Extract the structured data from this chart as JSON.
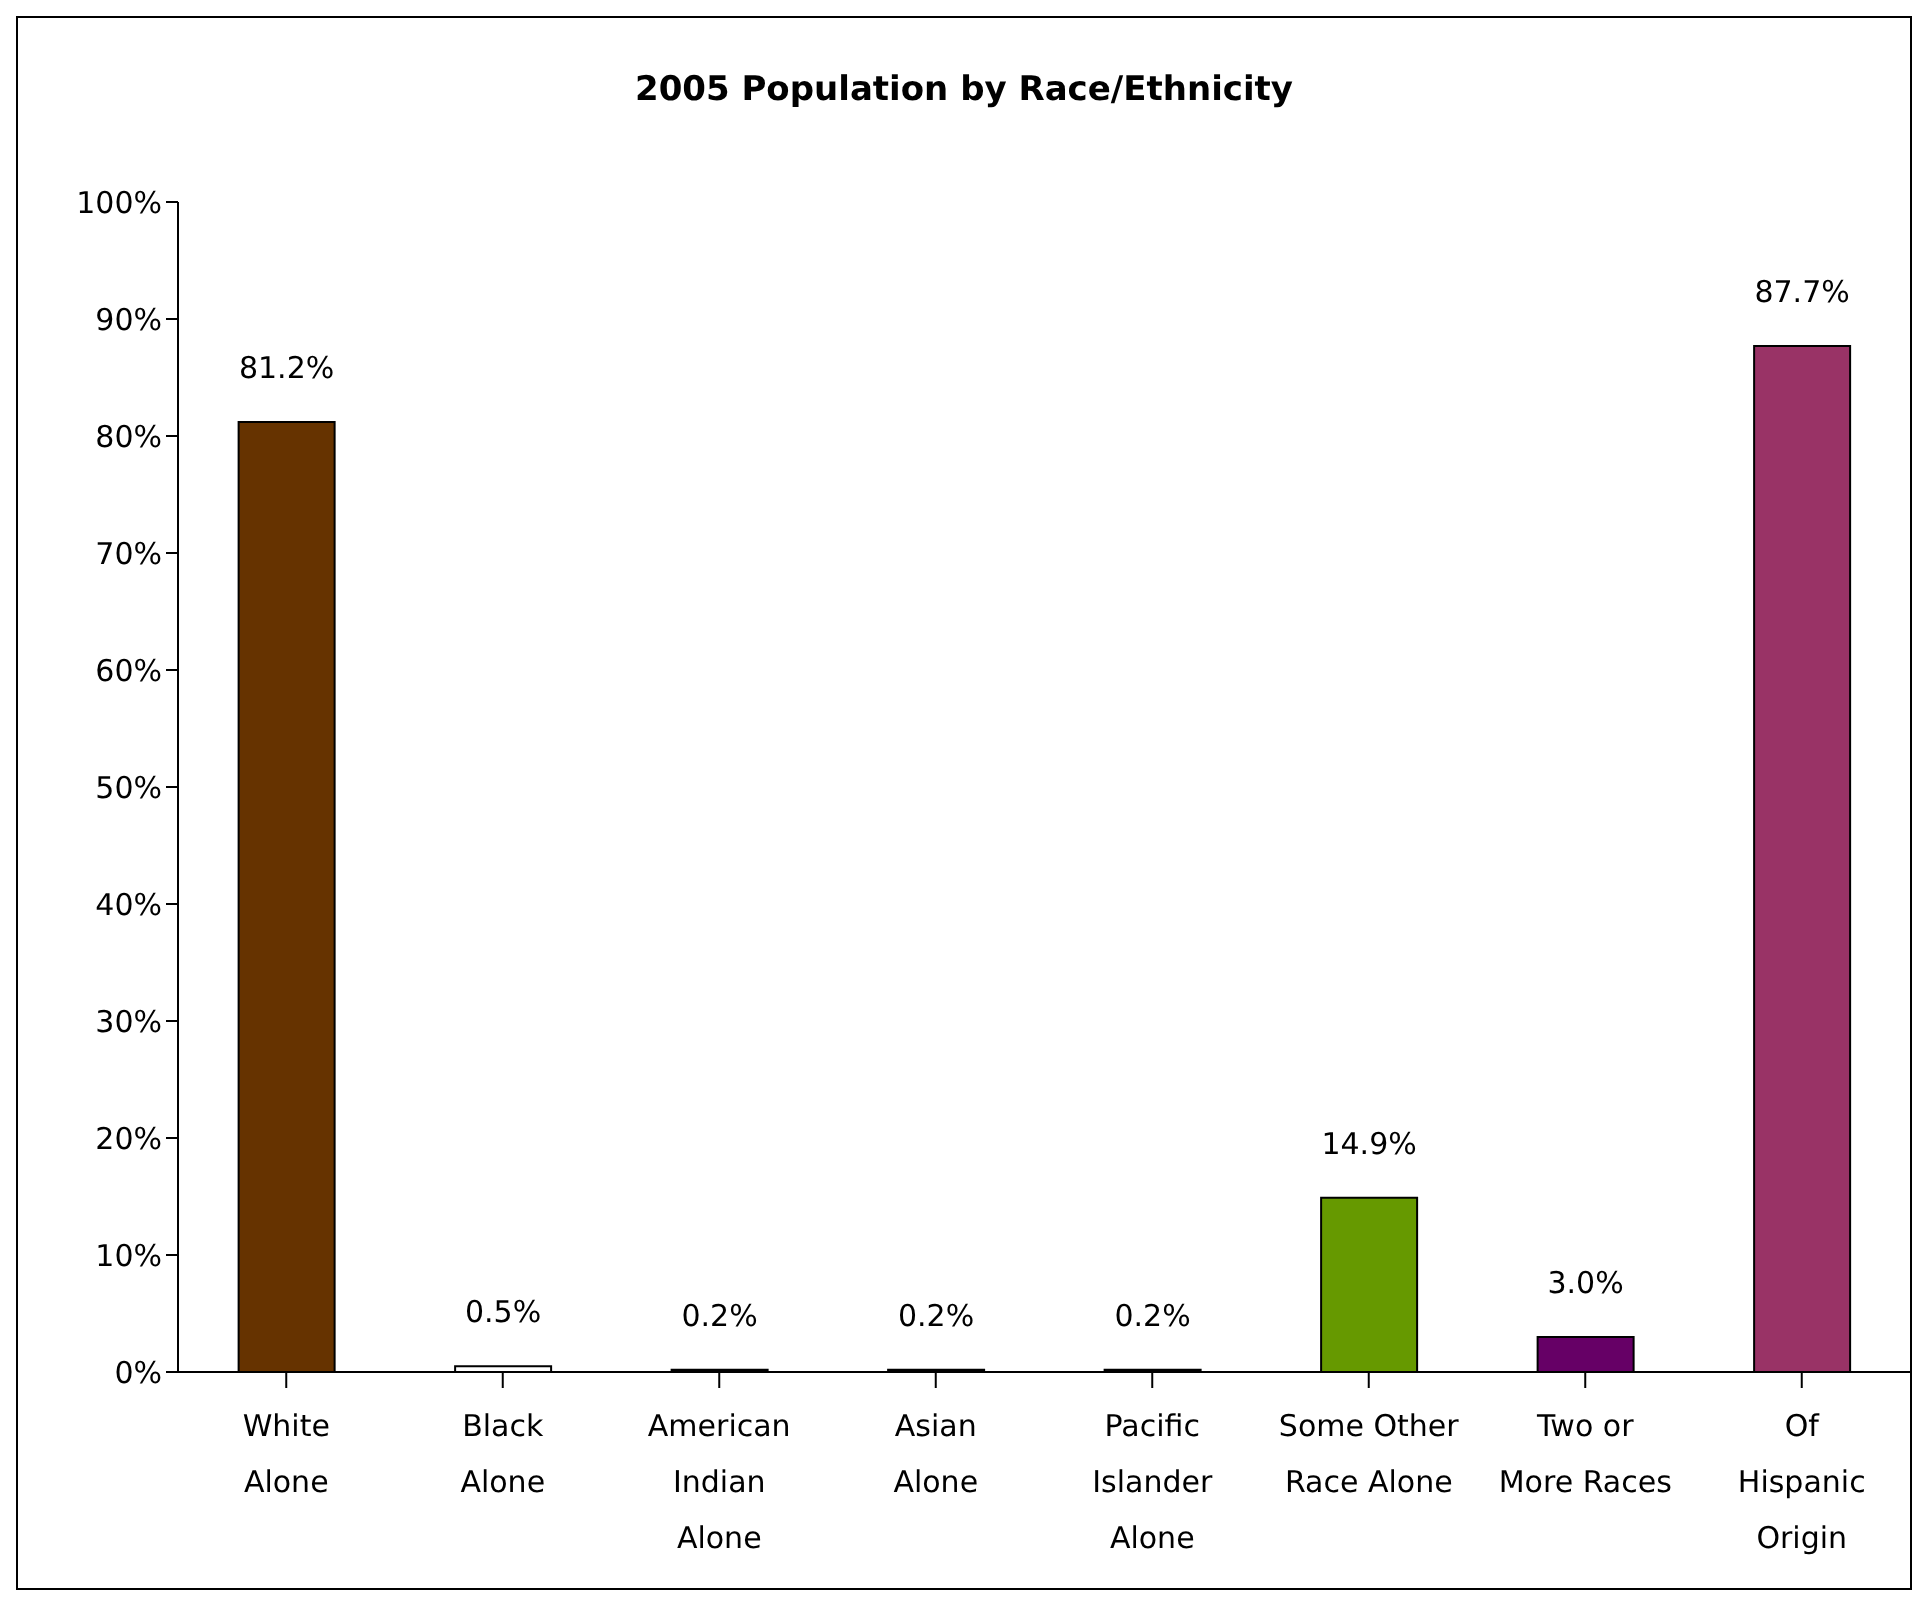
{
  "chart_data": {
    "type": "bar",
    "title": "2005 Population by Race/Ethnicity",
    "categories": [
      "White Alone",
      "Black Alone",
      "American Indian Alone",
      "Asian Alone",
      "Pacific Islander Alone",
      "Some Other Race Alone",
      "Two or More Races",
      "Of Hispanic Origin"
    ],
    "values": [
      81.2,
      0.5,
      0.2,
      0.2,
      0.2,
      14.9,
      3.0,
      87.7
    ],
    "colors": [
      "#663300",
      "#ffffff",
      "#000000",
      "#000000",
      "#000000",
      "#669900",
      "#660066",
      "#993366"
    ],
    "value_labels": [
      "81.2%",
      "0.5%",
      "0.2%",
      "0.2%",
      "0.2%",
      "14.9%",
      "3.0%",
      "87.7%"
    ],
    "ylim": [
      0,
      100
    ],
    "yticks": [
      {
        "value": 0,
        "label": "0%"
      },
      {
        "value": 10,
        "label": "10%"
      },
      {
        "value": 20,
        "label": "20%"
      },
      {
        "value": 30,
        "label": "30%"
      },
      {
        "value": 40,
        "label": "40%"
      },
      {
        "value": 50,
        "label": "50%"
      },
      {
        "value": 60,
        "label": "60%"
      },
      {
        "value": 70,
        "label": "70%"
      },
      {
        "value": 80,
        "label": "80%"
      },
      {
        "value": 90,
        "label": "90%"
      },
      {
        "value": 100,
        "label": "100%"
      }
    ],
    "grid": false,
    "legend": false
  }
}
